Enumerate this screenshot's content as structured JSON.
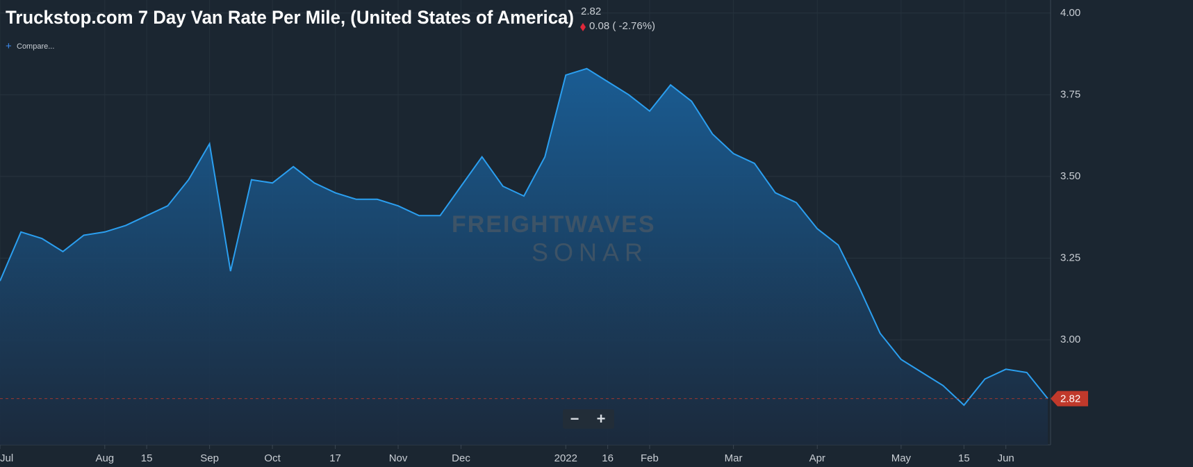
{
  "chart_data": {
    "type": "area",
    "title": "Truckstop.com 7 Day Van Rate Per Mile, (United States of America)",
    "last_value": 2.82,
    "change": "0.08 ( -2.76%)",
    "compare": "Compare...",
    "watermark": "FREIGHTWAVES",
    "watermark_sub": "SONAR",
    "zoom_out": "−",
    "zoom_in": "+",
    "color": "#2b9ff0",
    "grid": true,
    "ylim": [
      2.7,
      4.04
    ],
    "yticks": [
      {
        "value": 3,
        "label": "3.00"
      },
      {
        "value": 3.25,
        "label": "3.25"
      },
      {
        "value": 3.5,
        "label": "3.50"
      },
      {
        "value": 3.75,
        "label": "3.75"
      },
      {
        "value": 4,
        "label": "4.00"
      }
    ],
    "categories": [
      "Jul",
      null,
      null,
      null,
      null,
      "Aug",
      null,
      "15",
      null,
      null,
      "Sep",
      null,
      null,
      "Oct",
      null,
      null,
      "17",
      null,
      null,
      "Nov",
      null,
      null,
      "Dec",
      null,
      null,
      null,
      null,
      "2022",
      null,
      "16",
      null,
      "Feb",
      null,
      null,
      null,
      "Mar",
      null,
      null,
      null,
      "Apr",
      null,
      null,
      null,
      "May",
      null,
      null,
      "15",
      null,
      "Jun",
      null,
      null
    ],
    "values": [
      3.18,
      3.33,
      3.31,
      3.27,
      3.32,
      3.33,
      3.35,
      3.38,
      3.41,
      3.49,
      3.6,
      3.21,
      3.49,
      3.48,
      3.53,
      3.48,
      3.45,
      3.43,
      3.43,
      3.41,
      3.38,
      3.38,
      3.47,
      3.56,
      3.47,
      3.44,
      3.56,
      3.81,
      3.83,
      3.79,
      3.75,
      3.7,
      3.78,
      3.73,
      3.63,
      3.57,
      3.54,
      3.45,
      3.42,
      3.34,
      3.29,
      3.16,
      3.02,
      2.94,
      2.9,
      2.86,
      2.8,
      2.88,
      2.91,
      2.9,
      2.82
    ]
  }
}
